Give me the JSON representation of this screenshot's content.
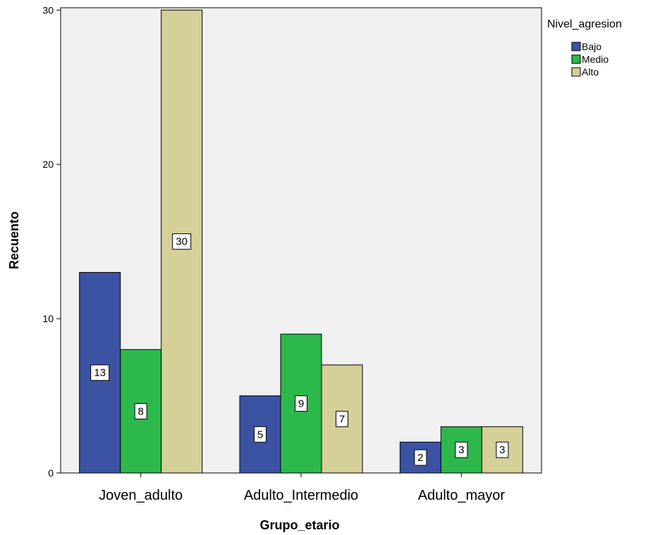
{
  "chart_data": {
    "type": "bar",
    "xlabel": "Grupo_etario",
    "ylabel": "Recuento",
    "categories": [
      "Joven_adulto",
      "Adulto_Intermedio",
      "Adulto_mayor"
    ],
    "series": [
      {
        "name": "Bajo",
        "values": [
          13,
          5,
          2
        ],
        "color": "#3c53a4"
      },
      {
        "name": "Medio",
        "values": [
          8,
          9,
          3
        ],
        "color": "#2db84c"
      },
      {
        "name": "Alto",
        "values": [
          30,
          7,
          3
        ],
        "color": "#d5cf98"
      }
    ],
    "ylim": [
      0,
      30.15
    ],
    "yticks": [
      0,
      10,
      20,
      30
    ],
    "legend_title": "Nivel_agresion",
    "legend_position": "top-right",
    "plot_background": "#f0f0f0",
    "data_labels": true,
    "grid": false
  }
}
